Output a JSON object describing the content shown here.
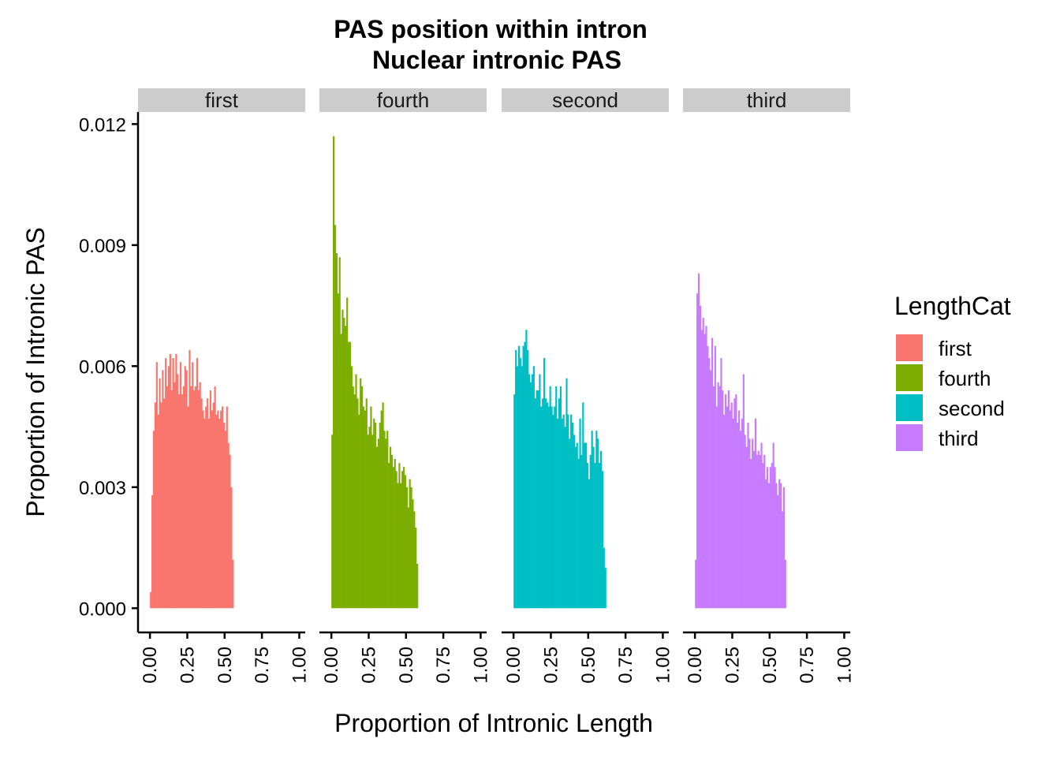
{
  "chart_data": {
    "type": "bar",
    "title": "PAS position within intron",
    "subtitle": "Nuclear intronic PAS",
    "xlabel": "Proportion of Intronic Length",
    "ylabel": "Proportion of Intronic PAS",
    "xlim": [
      -0.08,
      1.04
    ],
    "ylim": [
      -0.0006,
      0.0123
    ],
    "x_ticks": [
      "0.00",
      "0.25",
      "0.50",
      "0.75",
      "1.00"
    ],
    "y_ticks": [
      "0.000",
      "0.003",
      "0.006",
      "0.009",
      "0.012"
    ],
    "y_tick_values": [
      0,
      0.003,
      0.006,
      0.009,
      0.012
    ],
    "x_tick_values": [
      0,
      0.25,
      0.5,
      0.75,
      1.0
    ],
    "bin_width": 0.01,
    "grid": false,
    "legend": {
      "title": "LengthCat",
      "placement": "right",
      "items": [
        {
          "label": "first",
          "color": "#F8766D"
        },
        {
          "label": "fourth",
          "color": "#7CAE00"
        },
        {
          "label": "second",
          "color": "#00BFC4"
        },
        {
          "label": "third",
          "color": "#C77CFF"
        }
      ]
    },
    "panels": [
      {
        "label": "first",
        "color": "#F8766D",
        "values": [
          0.0004,
          0.0028,
          0.0044,
          0.0051,
          0.0061,
          0.0048,
          0.0057,
          0.0051,
          0.0059,
          0.0052,
          0.0062,
          0.0055,
          0.006,
          0.0063,
          0.0054,
          0.0062,
          0.0056,
          0.0063,
          0.0058,
          0.0053,
          0.0061,
          0.0053,
          0.0055,
          0.006,
          0.0059,
          0.005,
          0.0064,
          0.0055,
          0.0061,
          0.0054,
          0.0055,
          0.0062,
          0.0054,
          0.0056,
          0.0052,
          0.0049,
          0.0047,
          0.005,
          0.0052,
          0.0047,
          0.0054,
          0.0049,
          0.0051,
          0.0055,
          0.0048,
          0.0049,
          0.0047,
          0.0049,
          0.005,
          0.0046,
          0.0044,
          0.005,
          0.0041,
          0.0038,
          0.003,
          0.0012
        ]
      },
      {
        "label": "fourth",
        "color": "#7CAE00",
        "values": [
          0.0043,
          0.0117,
          0.0095,
          0.0088,
          0.0078,
          0.0087,
          0.0068,
          0.0074,
          0.0072,
          0.007,
          0.0077,
          0.0066,
          0.0066,
          0.006,
          0.0055,
          0.0053,
          0.0058,
          0.0052,
          0.0048,
          0.0057,
          0.0055,
          0.005,
          0.0049,
          0.0052,
          0.0043,
          0.0045,
          0.005,
          0.0043,
          0.0047,
          0.0046,
          0.004,
          0.0042,
          0.0046,
          0.0049,
          0.0051,
          0.0044,
          0.0042,
          0.0044,
          0.0036,
          0.004,
          0.0038,
          0.0035,
          0.0037,
          0.0034,
          0.0031,
          0.0036,
          0.0031,
          0.0034,
          0.0035,
          0.0033,
          0.003,
          0.0025,
          0.0032,
          0.003,
          0.0027,
          0.0024,
          0.002,
          0.0011
        ]
      },
      {
        "label": "second",
        "color": "#00BFC4",
        "values": [
          0.0053,
          0.0064,
          0.006,
          0.0065,
          0.0062,
          0.006,
          0.0065,
          0.0066,
          0.0069,
          0.0064,
          0.0058,
          0.0056,
          0.0058,
          0.006,
          0.0052,
          0.0054,
          0.0054,
          0.0058,
          0.005,
          0.0052,
          0.0062,
          0.0052,
          0.0051,
          0.005,
          0.0055,
          0.005,
          0.0048,
          0.005,
          0.0055,
          0.0047,
          0.0052,
          0.0055,
          0.0047,
          0.0048,
          0.0045,
          0.0057,
          0.0048,
          0.0042,
          0.0048,
          0.0046,
          0.0043,
          0.004,
          0.0041,
          0.0037,
          0.0047,
          0.0038,
          0.0051,
          0.0041,
          0.0041,
          0.0036,
          0.0032,
          0.0038,
          0.0044,
          0.004,
          0.0036,
          0.0044,
          0.0042,
          0.0036,
          0.0039,
          0.0034,
          0.0015,
          0.001
        ]
      },
      {
        "label": "third",
        "color": "#C77CFF",
        "values": [
          0.0012,
          0.0078,
          0.0083,
          0.0075,
          0.0069,
          0.0072,
          0.0068,
          0.007,
          0.0065,
          0.0062,
          0.0059,
          0.0067,
          0.0055,
          0.0065,
          0.005,
          0.0056,
          0.0055,
          0.0062,
          0.0054,
          0.0048,
          0.0053,
          0.005,
          0.0054,
          0.0049,
          0.0051,
          0.0047,
          0.0052,
          0.0053,
          0.0046,
          0.0049,
          0.0044,
          0.0047,
          0.0058,
          0.0043,
          0.004,
          0.0046,
          0.0042,
          0.0037,
          0.0042,
          0.0039,
          0.0047,
          0.0038,
          0.0039,
          0.0038,
          0.0041,
          0.0036,
          0.0038,
          0.0032,
          0.0035,
          0.0031,
          0.0035,
          0.0036,
          0.0041,
          0.0035,
          0.0031,
          0.0028,
          0.0032,
          0.0031,
          0.0024,
          0.003,
          0.0012
        ]
      }
    ]
  }
}
